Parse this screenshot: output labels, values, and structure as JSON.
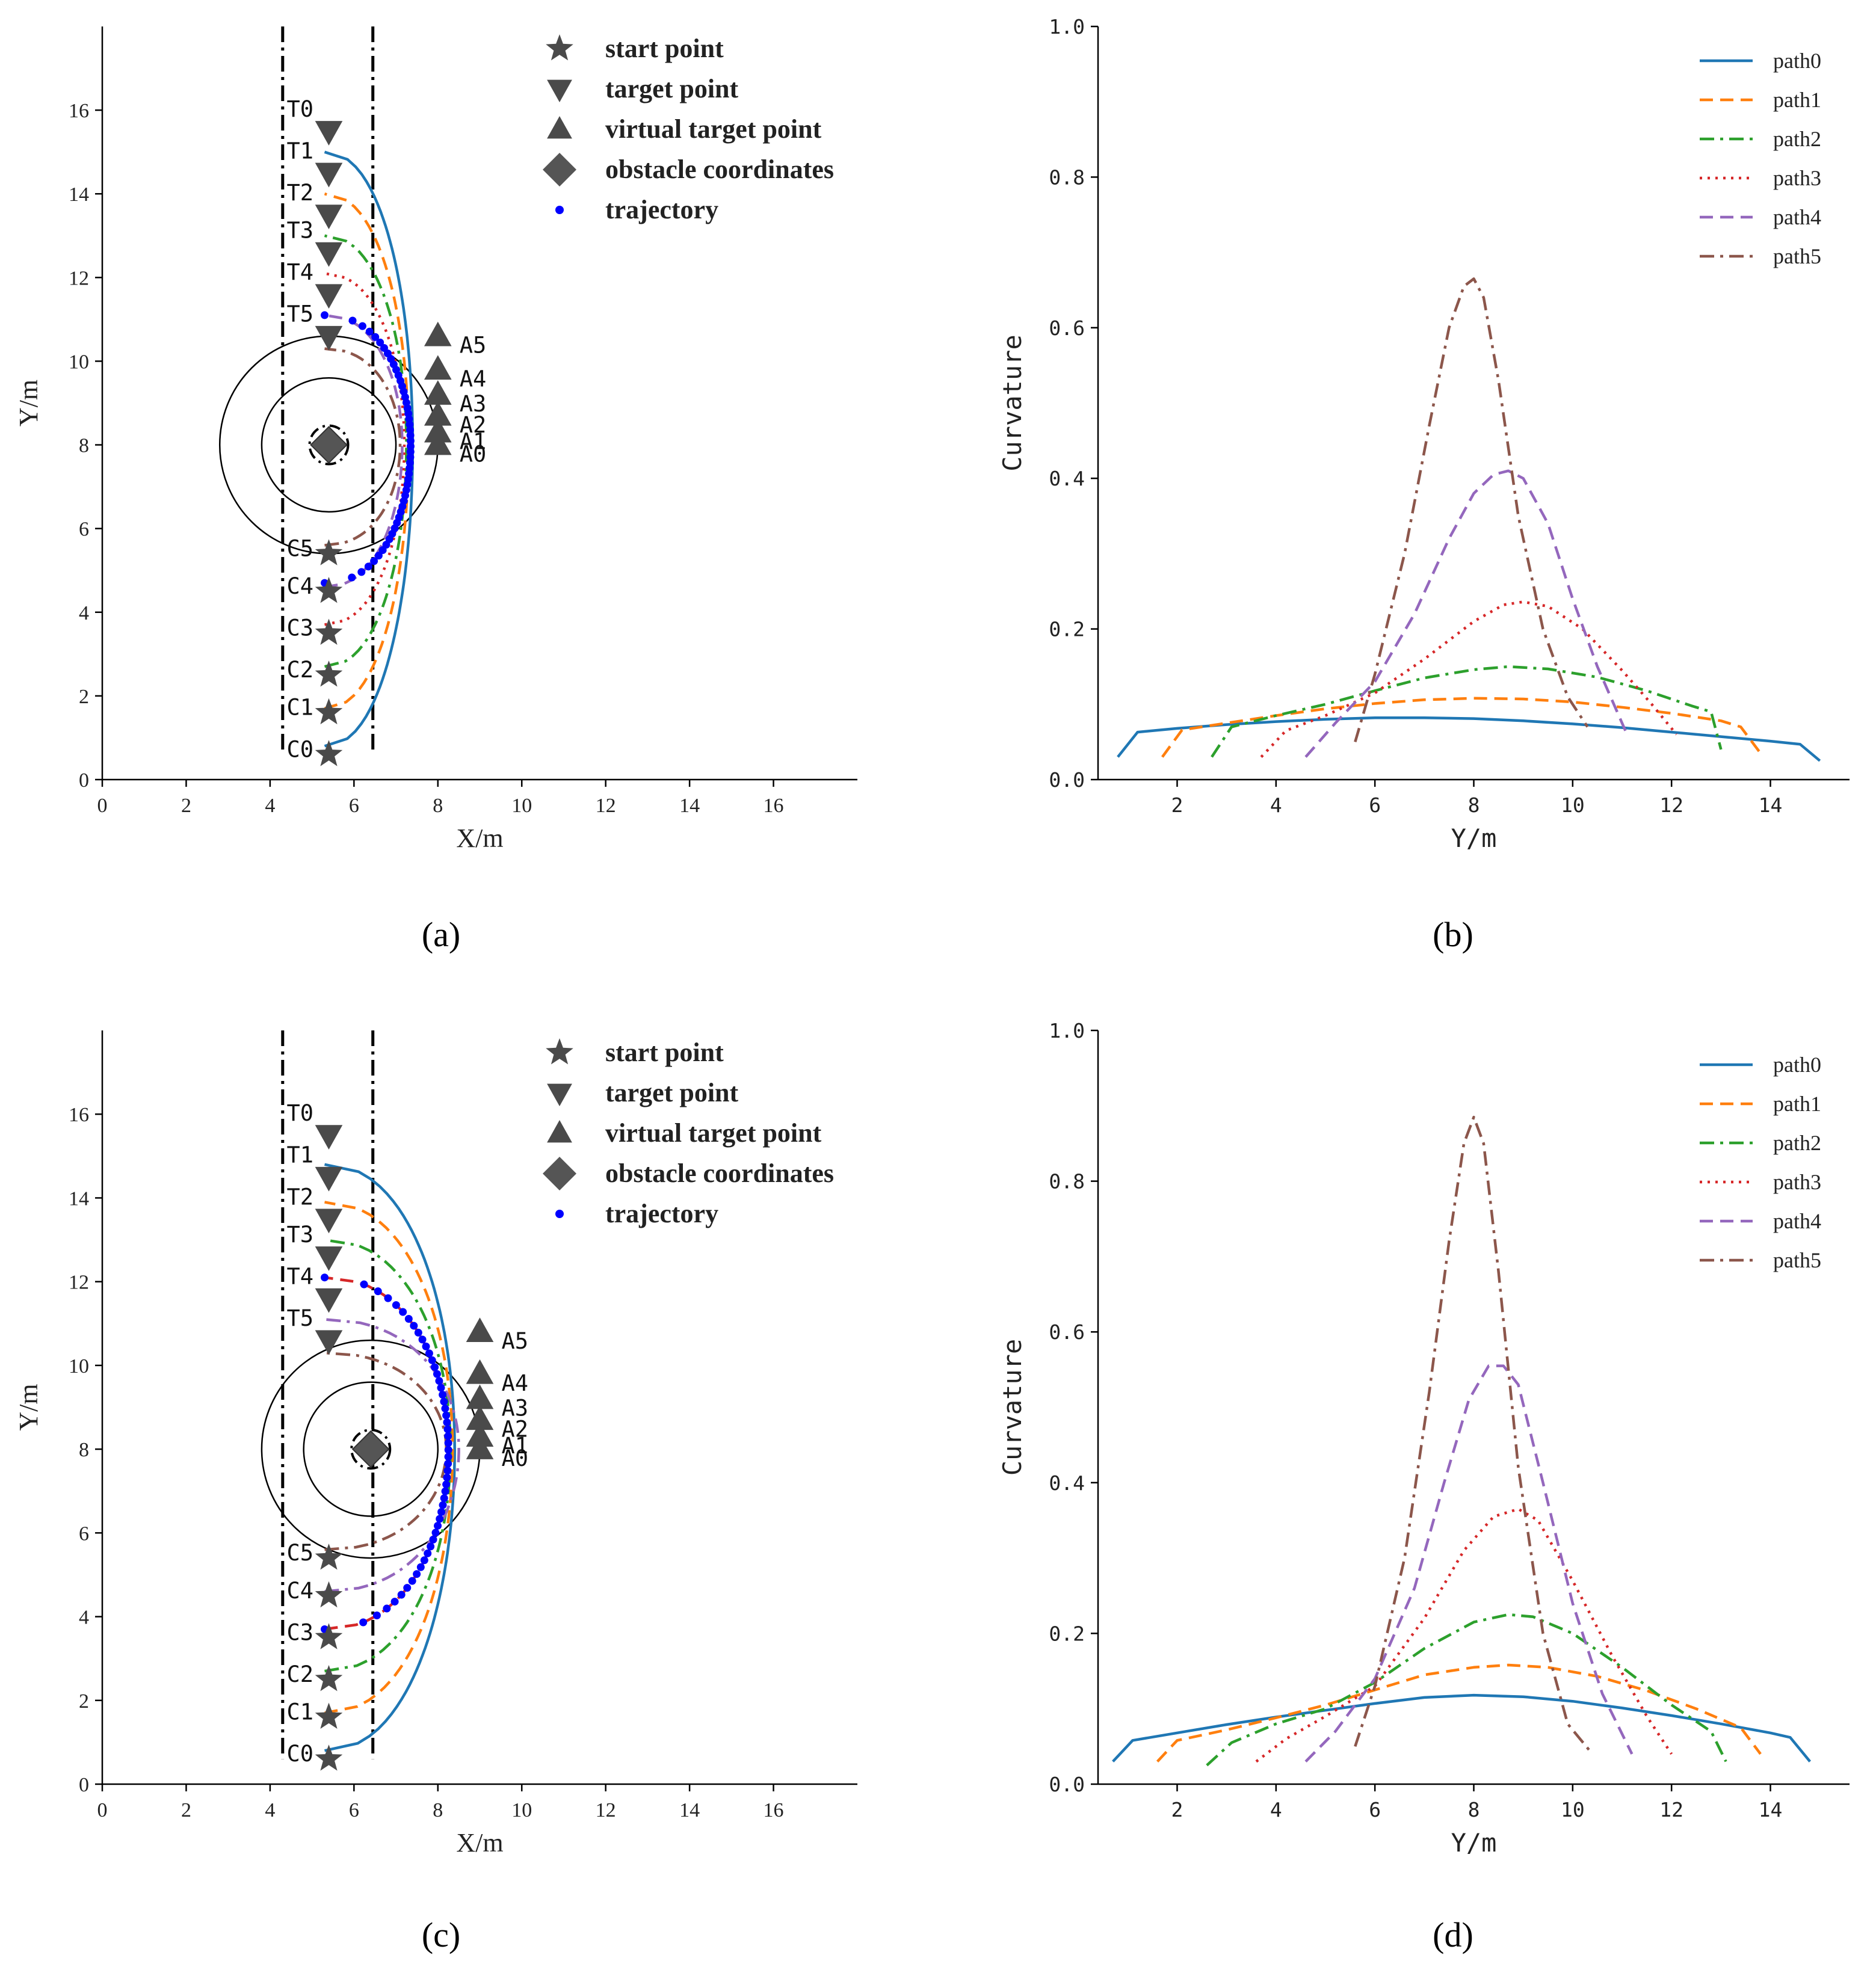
{
  "chart_data": [
    {
      "id": "a",
      "panel_label": "(a)",
      "type": "scatter",
      "xlabel": "X/m",
      "ylabel": "Y/m",
      "xlim": [
        0,
        18
      ],
      "ylim": [
        0,
        18
      ],
      "xticks": [
        0,
        2,
        4,
        6,
        8,
        10,
        12,
        14,
        16
      ],
      "yticks": [
        0,
        2,
        4,
        6,
        8,
        10,
        12,
        14,
        16
      ],
      "lane_lines_x": [
        4.3,
        6.45
      ],
      "obstacle": {
        "x": 5.4,
        "y": 8
      },
      "circles_radius": [
        1.6,
        2.6
      ],
      "legend": [
        "start point",
        "target point",
        "virtual target point",
        "obstacle coordinates",
        "trajectory"
      ],
      "start_points": [
        {
          "label": "C0",
          "x": 5.4,
          "y": 0.6
        },
        {
          "label": "C1",
          "x": 5.4,
          "y": 1.6
        },
        {
          "label": "C2",
          "x": 5.4,
          "y": 2.5
        },
        {
          "label": "C3",
          "x": 5.4,
          "y": 3.5
        },
        {
          "label": "C4",
          "x": 5.4,
          "y": 4.5
        },
        {
          "label": "C5",
          "x": 5.4,
          "y": 5.4
        }
      ],
      "target_points": [
        {
          "label": "T0",
          "x": 5.4,
          "y": 15.5
        },
        {
          "label": "T1",
          "x": 5.4,
          "y": 14.5
        },
        {
          "label": "T2",
          "x": 5.4,
          "y": 13.5
        },
        {
          "label": "T3",
          "x": 5.4,
          "y": 12.6
        },
        {
          "label": "T4",
          "x": 5.4,
          "y": 11.6
        },
        {
          "label": "T5",
          "x": 5.4,
          "y": 10.6
        }
      ],
      "virtual_target_points": [
        {
          "label": "A0",
          "x": 8.0,
          "y": 8.0
        },
        {
          "label": "A1",
          "x": 8.0,
          "y": 8.3
        },
        {
          "label": "A2",
          "x": 8.0,
          "y": 8.7
        },
        {
          "label": "A3",
          "x": 8.0,
          "y": 9.2
        },
        {
          "label": "A4",
          "x": 8.0,
          "y": 9.8
        },
        {
          "label": "A5",
          "x": 8.0,
          "y": 10.6
        }
      ],
      "series": [
        {
          "name": "path0",
          "color": "#1f77b4",
          "dash": "solid",
          "y_start": 0.8,
          "y_end": 15.0,
          "x_peak": 7.4
        },
        {
          "name": "path1",
          "color": "#ff7f0e",
          "dash": "dash",
          "y_start": 1.7,
          "y_end": 14.0,
          "x_peak": 7.3
        },
        {
          "name": "path2",
          "color": "#2ca02c",
          "dash": "dashdot",
          "y_start": 2.7,
          "y_end": 13.0,
          "x_peak": 7.25
        },
        {
          "name": "path3",
          "color": "#d62728",
          "dash": "dot",
          "y_start": 3.7,
          "y_end": 12.1,
          "x_peak": 7.2
        },
        {
          "name": "path4",
          "color": "#9467bd",
          "dash": "dash",
          "y_start": 4.6,
          "y_end": 11.1,
          "x_peak": 7.15
        },
        {
          "name": "path5",
          "color": "#8c564b",
          "dash": "dashdot",
          "y_start": 5.6,
          "y_end": 10.3,
          "x_peak": 7.1
        }
      ],
      "trajectory": {
        "color": "#0000ff",
        "y_start": 4.7,
        "y_end": 11.1,
        "x_peak": 7.35,
        "points": 50
      }
    },
    {
      "id": "b",
      "panel_label": "(b)",
      "type": "line",
      "xlabel": "Y/m",
      "ylabel": "Curvature",
      "xlim": [
        0.4,
        15.6
      ],
      "ylim": [
        0,
        1.0
      ],
      "xticks": [
        2,
        4,
        6,
        8,
        10,
        12,
        14
      ],
      "yticks": [
        0.0,
        0.2,
        0.4,
        0.6,
        0.8,
        1.0
      ],
      "series": [
        {
          "name": "path0",
          "color": "#1f77b4",
          "dash": "solid",
          "x": [
            0.8,
            1.2,
            2,
            3,
            4,
            5,
            6,
            7,
            8,
            9,
            10,
            11,
            12,
            13,
            14,
            14.6,
            15.0
          ],
          "values": [
            0.03,
            0.063,
            0.068,
            0.073,
            0.077,
            0.08,
            0.082,
            0.082,
            0.081,
            0.078,
            0.074,
            0.069,
            0.063,
            0.057,
            0.051,
            0.047,
            0.025
          ]
        },
        {
          "name": "path1",
          "color": "#ff7f0e",
          "dash": "dash",
          "x": [
            1.7,
            2.1,
            3,
            4,
            5,
            6,
            7,
            8,
            9,
            10,
            11,
            12,
            13,
            13.4,
            13.8
          ],
          "values": [
            0.03,
            0.066,
            0.075,
            0.085,
            0.094,
            0.101,
            0.106,
            0.108,
            0.107,
            0.103,
            0.096,
            0.088,
            0.078,
            0.07,
            0.035
          ]
        },
        {
          "name": "path2",
          "color": "#2ca02c",
          "dash": "dashdot",
          "x": [
            2.7,
            3.1,
            4,
            5,
            6,
            7,
            8,
            8.7,
            9.5,
            10.5,
            11.5,
            12.4,
            12.8,
            13.0
          ],
          "values": [
            0.03,
            0.07,
            0.085,
            0.1,
            0.118,
            0.135,
            0.146,
            0.15,
            0.147,
            0.136,
            0.118,
            0.098,
            0.09,
            0.04
          ]
        },
        {
          "name": "path3",
          "color": "#d62728",
          "dash": "dot",
          "x": [
            3.7,
            4.2,
            5,
            6,
            7,
            8,
            8.6,
            9.0,
            9.5,
            10.2,
            11,
            11.6,
            12.1
          ],
          "values": [
            0.03,
            0.065,
            0.085,
            0.115,
            0.16,
            0.21,
            0.232,
            0.236,
            0.23,
            0.2,
            0.145,
            0.1,
            0.06
          ]
        },
        {
          "name": "path4",
          "color": "#9467bd",
          "dash": "dash",
          "x": [
            4.6,
            5.2,
            6,
            6.8,
            7.5,
            8,
            8.4,
            8.7,
            9.0,
            9.5,
            10,
            10.5,
            11.1
          ],
          "values": [
            0.03,
            0.075,
            0.13,
            0.22,
            0.32,
            0.38,
            0.405,
            0.41,
            0.4,
            0.34,
            0.24,
            0.15,
            0.06
          ]
        },
        {
          "name": "path5",
          "color": "#8c564b",
          "dash": "dashdot",
          "x": [
            5.6,
            6,
            6.6,
            7.1,
            7.5,
            7.8,
            8.0,
            8.2,
            8.5,
            8.9,
            9.4,
            9.9,
            10.3
          ],
          "values": [
            0.05,
            0.14,
            0.3,
            0.47,
            0.6,
            0.655,
            0.665,
            0.64,
            0.53,
            0.35,
            0.2,
            0.11,
            0.07
          ]
        }
      ]
    },
    {
      "id": "c",
      "panel_label": "(c)",
      "type": "scatter",
      "xlabel": "X/m",
      "ylabel": "Y/m",
      "xlim": [
        0,
        18
      ],
      "ylim": [
        0,
        18
      ],
      "xticks": [
        0,
        2,
        4,
        6,
        8,
        10,
        12,
        14,
        16
      ],
      "yticks": [
        0,
        2,
        4,
        6,
        8,
        10,
        12,
        14,
        16
      ],
      "lane_lines_x": [
        4.3,
        6.45
      ],
      "obstacle": {
        "x": 6.4,
        "y": 8
      },
      "circles_radius": [
        1.6,
        2.6
      ],
      "legend": [
        "start point",
        "target point",
        "virtual target point",
        "obstacle coordinates",
        "trajectory"
      ],
      "start_points": [
        {
          "label": "C0",
          "x": 5.4,
          "y": 0.6
        },
        {
          "label": "C1",
          "x": 5.4,
          "y": 1.6
        },
        {
          "label": "C2",
          "x": 5.4,
          "y": 2.5
        },
        {
          "label": "C3",
          "x": 5.4,
          "y": 3.5
        },
        {
          "label": "C4",
          "x": 5.4,
          "y": 4.5
        },
        {
          "label": "C5",
          "x": 5.4,
          "y": 5.4
        }
      ],
      "target_points": [
        {
          "label": "T0",
          "x": 5.4,
          "y": 15.5
        },
        {
          "label": "T1",
          "x": 5.4,
          "y": 14.5
        },
        {
          "label": "T2",
          "x": 5.4,
          "y": 13.5
        },
        {
          "label": "T3",
          "x": 5.4,
          "y": 12.6
        },
        {
          "label": "T4",
          "x": 5.4,
          "y": 11.6
        },
        {
          "label": "T5",
          "x": 5.4,
          "y": 10.6
        }
      ],
      "virtual_target_points": [
        {
          "label": "A0",
          "x": 9.0,
          "y": 8.0
        },
        {
          "label": "A1",
          "x": 9.0,
          "y": 8.3
        },
        {
          "label": "A2",
          "x": 9.0,
          "y": 8.7
        },
        {
          "label": "A3",
          "x": 9.0,
          "y": 9.2
        },
        {
          "label": "A4",
          "x": 9.0,
          "y": 9.8
        },
        {
          "label": "A5",
          "x": 9.0,
          "y": 10.8
        }
      ],
      "series": [
        {
          "name": "path0",
          "color": "#1f77b4",
          "dash": "solid",
          "y_start": 0.8,
          "y_end": 14.8,
          "x_peak": 8.4
        },
        {
          "name": "path1",
          "color": "#ff7f0e",
          "dash": "dash",
          "y_start": 1.7,
          "y_end": 13.9,
          "x_peak": 8.35
        },
        {
          "name": "path2",
          "color": "#2ca02c",
          "dash": "dashdot",
          "y_start": 2.7,
          "y_end": 13.0,
          "x_peak": 8.3
        },
        {
          "name": "path3",
          "color": "#d62728",
          "dash": "dash",
          "y_start": 3.7,
          "y_end": 12.1,
          "x_peak": 8.25
        },
        {
          "name": "path4",
          "color": "#9467bd",
          "dash": "dashdot",
          "y_start": 4.6,
          "y_end": 11.1,
          "x_peak": 8.5
        },
        {
          "name": "path5",
          "color": "#8c564b",
          "dash": "dashdot",
          "y_start": 5.6,
          "y_end": 10.3,
          "x_peak": 8.2
        }
      ],
      "trajectory": {
        "color": "#0000ff",
        "y_start": 3.7,
        "y_end": 12.1,
        "x_peak": 8.25,
        "points": 52
      }
    },
    {
      "id": "d",
      "panel_label": "(d)",
      "type": "line",
      "xlabel": "Y/m",
      "ylabel": "Curvature",
      "xlim": [
        0.4,
        15.6
      ],
      "ylim": [
        0,
        1.0
      ],
      "xticks": [
        2,
        4,
        6,
        8,
        10,
        12,
        14
      ],
      "yticks": [
        0.0,
        0.2,
        0.4,
        0.6,
        0.8,
        1.0
      ],
      "series": [
        {
          "name": "path0",
          "color": "#1f77b4",
          "dash": "solid",
          "x": [
            0.7,
            1.1,
            2,
            3,
            4,
            5,
            6,
            7,
            8,
            9,
            10,
            11,
            12,
            13,
            14,
            14.4,
            14.8
          ],
          "values": [
            0.03,
            0.058,
            0.068,
            0.079,
            0.089,
            0.098,
            0.107,
            0.115,
            0.118,
            0.116,
            0.11,
            0.101,
            0.091,
            0.08,
            0.068,
            0.062,
            0.03
          ]
        },
        {
          "name": "path1",
          "color": "#ff7f0e",
          "dash": "dash",
          "x": [
            1.6,
            2.0,
            3,
            4,
            5,
            6,
            7,
            8,
            8.7,
            9.5,
            10.5,
            11.5,
            12.5,
            13.4,
            13.8
          ],
          "values": [
            0.03,
            0.058,
            0.072,
            0.088,
            0.105,
            0.125,
            0.145,
            0.155,
            0.158,
            0.155,
            0.143,
            0.124,
            0.1,
            0.075,
            0.04
          ]
        },
        {
          "name": "path2",
          "color": "#2ca02c",
          "dash": "dashdot",
          "x": [
            2.6,
            3.1,
            4,
            5,
            6,
            7,
            8,
            8.7,
            9.2,
            10,
            11,
            12,
            12.8,
            13.1
          ],
          "values": [
            0.025,
            0.055,
            0.08,
            0.1,
            0.135,
            0.18,
            0.215,
            0.225,
            0.222,
            0.2,
            0.155,
            0.105,
            0.07,
            0.03
          ]
        },
        {
          "name": "path3",
          "color": "#d62728",
          "dash": "dot",
          "x": [
            3.6,
            4.2,
            5,
            6,
            7,
            7.8,
            8.4,
            8.9,
            9.3,
            10,
            10.8,
            11.5,
            12.0
          ],
          "values": [
            0.03,
            0.06,
            0.09,
            0.13,
            0.22,
            0.31,
            0.355,
            0.365,
            0.35,
            0.27,
            0.17,
            0.09,
            0.04
          ]
        },
        {
          "name": "path4",
          "color": "#9467bd",
          "dash": "dash",
          "x": [
            4.6,
            5.2,
            6,
            6.8,
            7.4,
            7.9,
            8.3,
            8.6,
            8.9,
            9.4,
            10,
            10.6,
            11.2
          ],
          "values": [
            0.03,
            0.07,
            0.14,
            0.26,
            0.4,
            0.51,
            0.555,
            0.555,
            0.53,
            0.4,
            0.24,
            0.12,
            0.04
          ]
        },
        {
          "name": "path5",
          "color": "#8c564b",
          "dash": "dashdot",
          "x": [
            5.6,
            6.0,
            6.6,
            7.1,
            7.5,
            7.8,
            8.0,
            8.2,
            8.5,
            8.9,
            9.4,
            9.9,
            10.4
          ],
          "values": [
            0.05,
            0.13,
            0.3,
            0.52,
            0.72,
            0.85,
            0.885,
            0.85,
            0.68,
            0.42,
            0.2,
            0.08,
            0.04
          ]
        }
      ]
    }
  ]
}
